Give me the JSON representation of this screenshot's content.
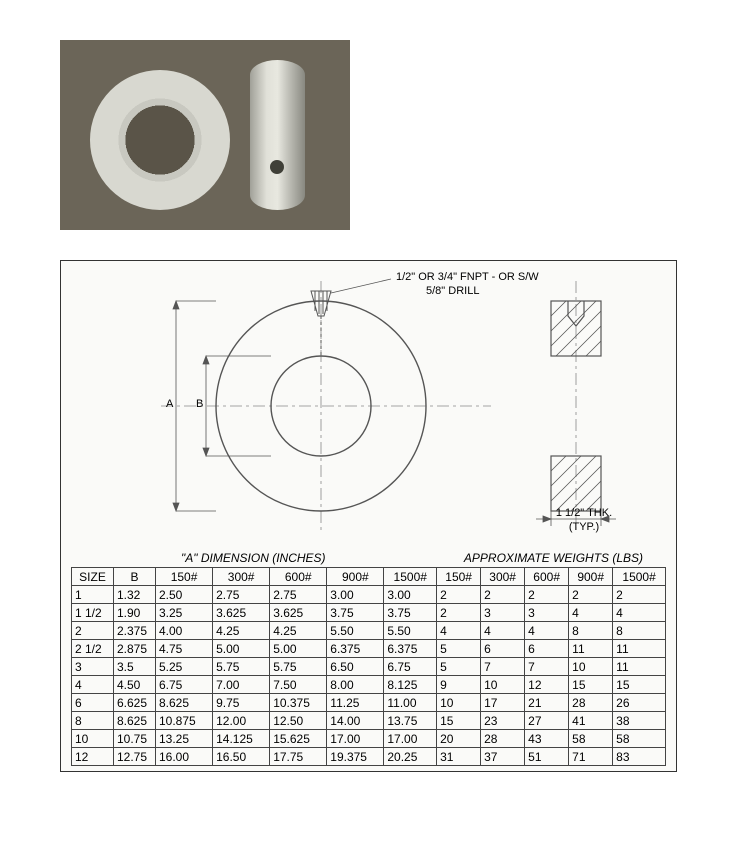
{
  "drawing": {
    "callout1": "1/2\" OR 3/4\" FNPT - OR S/W",
    "callout2": "5/8\" DRILL",
    "thk_label1": "1 1/2\" THK.",
    "thk_label2": "(TYP.)",
    "dim_a": "A",
    "dim_b": "B",
    "stroke": "#666666",
    "hatch": "#888888",
    "centerline": "#888888"
  },
  "table": {
    "heading_left": "\"A\" DIMENSION (INCHES)",
    "heading_right": "APPROXIMATE WEIGHTS (LBS)",
    "columns": [
      "SIZE",
      "B",
      "150#",
      "300#",
      "600#",
      "900#",
      "1500#",
      "150#",
      "300#",
      "600#",
      "900#",
      "1500#"
    ],
    "rows": [
      [
        "1",
        "1.32",
        "2.50",
        "2.75",
        "2.75",
        "3.00",
        "3.00",
        "2",
        "2",
        "2",
        "2",
        "2"
      ],
      [
        "1 1/2",
        "1.90",
        "3.25",
        "3.625",
        "3.625",
        "3.75",
        "3.75",
        "2",
        "3",
        "3",
        "4",
        "4"
      ],
      [
        "2",
        "2.375",
        "4.00",
        "4.25",
        "4.25",
        "5.50",
        "5.50",
        "4",
        "4",
        "4",
        "8",
        "8"
      ],
      [
        "2 1/2",
        "2.875",
        "4.75",
        "5.00",
        "5.00",
        "6.375",
        "6.375",
        "5",
        "6",
        "6",
        "11",
        "11"
      ],
      [
        "3",
        "3.5",
        "5.25",
        "5.75",
        "5.75",
        "6.50",
        "6.75",
        "5",
        "7",
        "7",
        "10",
        "11"
      ],
      [
        "4",
        "4.50",
        "6.75",
        "7.00",
        "7.50",
        "8.00",
        "8.125",
        "9",
        "10",
        "12",
        "15",
        "15"
      ],
      [
        "6",
        "6.625",
        "8.625",
        "9.75",
        "10.375",
        "11.25",
        "11.00",
        "10",
        "17",
        "21",
        "28",
        "26"
      ],
      [
        "8",
        "8.625",
        "10.875",
        "12.00",
        "12.50",
        "14.00",
        "13.75",
        "15",
        "23",
        "27",
        "41",
        "38"
      ],
      [
        "10",
        "10.75",
        "13.25",
        "14.125",
        "15.625",
        "17.00",
        "17.00",
        "20",
        "28",
        "43",
        "58",
        "58"
      ],
      [
        "12",
        "12.75",
        "16.00",
        "16.50",
        "17.75",
        "19.375",
        "20.25",
        "31",
        "37",
        "51",
        "71",
        "83"
      ]
    ]
  }
}
